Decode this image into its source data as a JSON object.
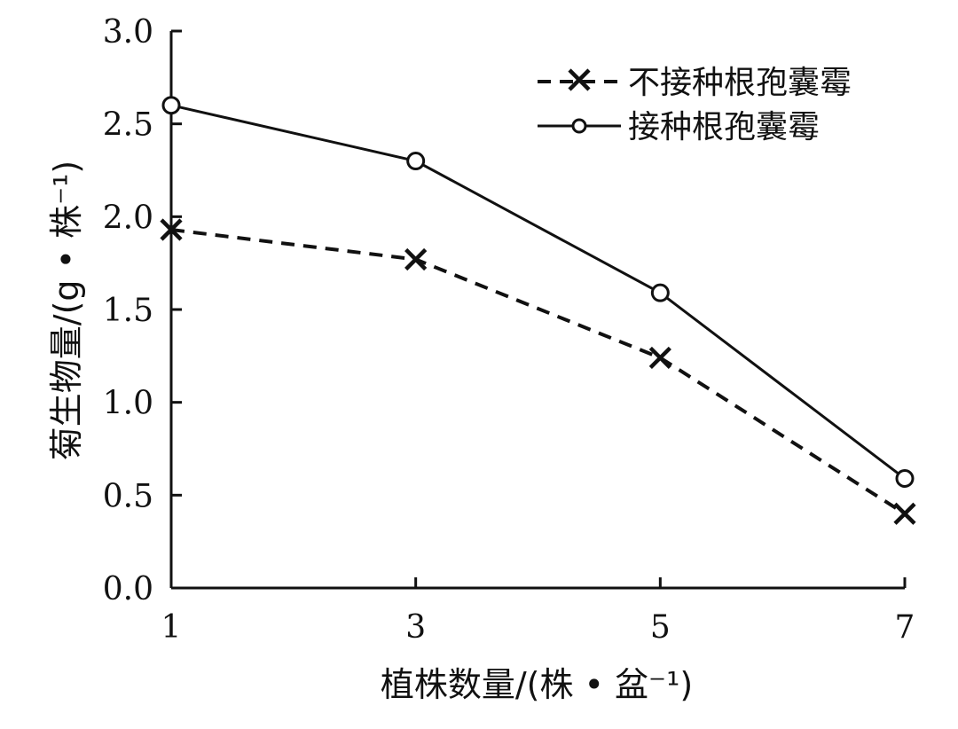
{
  "chart_data": {
    "type": "line",
    "x": [
      1,
      3,
      5,
      7
    ],
    "xticks": [
      "1",
      "3",
      "5",
      "7"
    ],
    "yticks": [
      "0.0",
      "0.5",
      "1.0",
      "1.5",
      "2.0",
      "2.5",
      "3.0"
    ],
    "xlim": [
      1,
      7
    ],
    "ylim": [
      0,
      3.0
    ],
    "xlabel": "植株数量/(株 • 盆⁻¹)",
    "ylabel": "菊生物量/(g • 株⁻¹)",
    "grid": false,
    "legend_position": "top-right",
    "series": [
      {
        "name": "不接种根孢囊霉",
        "values": [
          1.93,
          1.77,
          1.24,
          0.4
        ],
        "line_style": "dashed",
        "marker": "x",
        "color": "#111111"
      },
      {
        "name": "接种根孢囊霉",
        "values": [
          2.6,
          2.3,
          1.59,
          0.59
        ],
        "line_style": "solid",
        "marker": "circle",
        "color": "#111111"
      }
    ]
  }
}
